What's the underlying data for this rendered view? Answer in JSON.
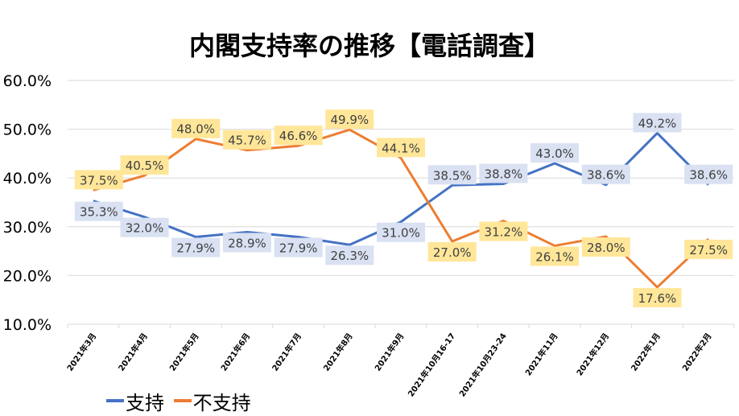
{
  "chart_data": {
    "type": "line",
    "title": "内閣支持率の推移【電話調査】",
    "xlabel": "",
    "ylabel": "",
    "ylim": [
      10,
      60
    ],
    "yticks": [
      "10.0%",
      "20.0%",
      "30.0%",
      "40.0%",
      "50.0%",
      "60.0%"
    ],
    "grid": true,
    "legend_position": "bottom",
    "categories": [
      "2021年3月",
      "2021年4月",
      "2021年5月",
      "2021年6月",
      "2021年7月",
      "2021年8月",
      "2021年9月",
      "2021年10月16-17",
      "2021年10月23-24",
      "2021年11月",
      "2021年12月",
      "2022年1月",
      "2022年2月"
    ],
    "series": [
      {
        "name": "支持",
        "color": "#4472C4",
        "label_bg": "#D9E1F2",
        "values": [
          35.3,
          32.0,
          27.9,
          28.9,
          27.9,
          26.3,
          31.0,
          38.5,
          38.8,
          43.0,
          38.6,
          49.2,
          38.6
        ]
      },
      {
        "name": "不支持",
        "color": "#ED7D31",
        "label_bg": "#FFE699",
        "values": [
          37.5,
          40.5,
          48.0,
          45.7,
          46.6,
          49.9,
          44.1,
          27.0,
          31.2,
          26.1,
          28.0,
          17.6,
          27.5
        ]
      }
    ]
  }
}
